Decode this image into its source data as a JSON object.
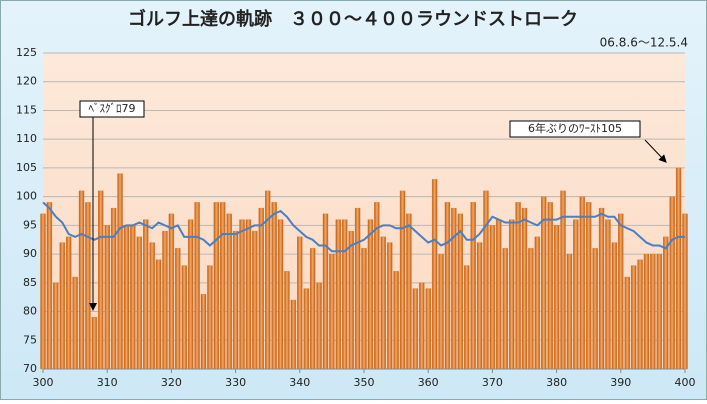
{
  "chart_data": {
    "type": "bar",
    "title": "ゴルフ上達の軌跡　３００～４００ラウンドストローク",
    "subtitle": "06.8.6～12.5.4",
    "annotations": [
      "ﾍﾞｽｸﾞﾛ79",
      "6年ぶりのﾜｰｽﾄ105"
    ],
    "x": [
      300,
      301,
      302,
      303,
      304,
      305,
      306,
      307,
      308,
      309,
      310,
      311,
      312,
      313,
      314,
      315,
      316,
      317,
      318,
      319,
      320,
      321,
      322,
      323,
      324,
      325,
      326,
      327,
      328,
      329,
      330,
      331,
      332,
      333,
      334,
      335,
      336,
      337,
      338,
      339,
      340,
      341,
      342,
      343,
      344,
      345,
      346,
      347,
      348,
      349,
      350,
      351,
      352,
      353,
      354,
      355,
      356,
      357,
      358,
      359,
      360,
      361,
      362,
      363,
      364,
      365,
      366,
      367,
      368,
      369,
      370,
      371,
      372,
      373,
      374,
      375,
      376,
      377,
      378,
      379,
      380,
      381,
      382,
      383,
      384,
      385,
      386,
      387,
      388,
      389,
      390,
      391,
      392,
      393,
      394,
      395,
      396,
      397,
      398,
      399,
      400
    ],
    "series": [
      {
        "type": "bar",
        "color": "#e07c28",
        "values": [
          97,
          99,
          85,
          92,
          93,
          86,
          101,
          99,
          79,
          101,
          95,
          98,
          104,
          95,
          95,
          93,
          96,
          92,
          89,
          94,
          97,
          91,
          88,
          96,
          99,
          83,
          88,
          99,
          99,
          97,
          94,
          96,
          96,
          94,
          98,
          101,
          99,
          96,
          87,
          82,
          93,
          84,
          91,
          85,
          97,
          90,
          96,
          96,
          94,
          98,
          91,
          96,
          99,
          93,
          92,
          87,
          101,
          97,
          84,
          85,
          84,
          103,
          90,
          99,
          98,
          97,
          88,
          99,
          92,
          101,
          95,
          96,
          91,
          96,
          99,
          98,
          91,
          93,
          100,
          99,
          95,
          101,
          90,
          96,
          100,
          99,
          91,
          98,
          96,
          92,
          97,
          86,
          88,
          89,
          90,
          90,
          90,
          93,
          100,
          105,
          97
        ]
      },
      {
        "type": "line",
        "color": "#4a7fc1",
        "values": [
          99,
          98,
          96.5,
          95.5,
          93.5,
          93,
          93.5,
          93,
          92.5,
          93,
          93,
          93,
          94.5,
          95,
          95,
          95.5,
          95,
          94.5,
          95.5,
          95,
          94.5,
          95,
          93,
          93,
          93,
          92.5,
          91.5,
          92.5,
          93.5,
          93.5,
          93.5,
          94,
          94.5,
          95,
          95,
          96,
          97,
          97.5,
          96.5,
          95,
          94,
          93,
          92.5,
          91.5,
          91.5,
          90.5,
          90.5,
          90.5,
          91.5,
          92,
          92.5,
          93.5,
          94.5,
          95,
          95,
          94.5,
          94.5,
          95,
          94,
          93,
          92,
          92.5,
          91.5,
          92,
          93,
          94,
          92.5,
          92.5,
          93.5,
          95,
          96.5,
          96,
          95.5,
          95.5,
          95.5,
          96,
          95.5,
          95,
          96,
          96,
          96,
          96.5,
          96.5,
          96.5,
          96.5,
          96.5,
          96.5,
          97,
          96.5,
          96.5,
          95,
          94.5,
          94,
          93,
          92,
          91.5,
          91.5,
          91,
          92.5,
          93,
          93
        ]
      }
    ],
    "xlim": [
      300,
      400
    ],
    "xticks": [
      300,
      310,
      320,
      330,
      340,
      350,
      360,
      370,
      380,
      390,
      400
    ],
    "ylim": [
      70,
      125
    ],
    "yticks": [
      70,
      75,
      80,
      85,
      90,
      95,
      100,
      105,
      110,
      115,
      120,
      125
    ],
    "grid": true
  }
}
